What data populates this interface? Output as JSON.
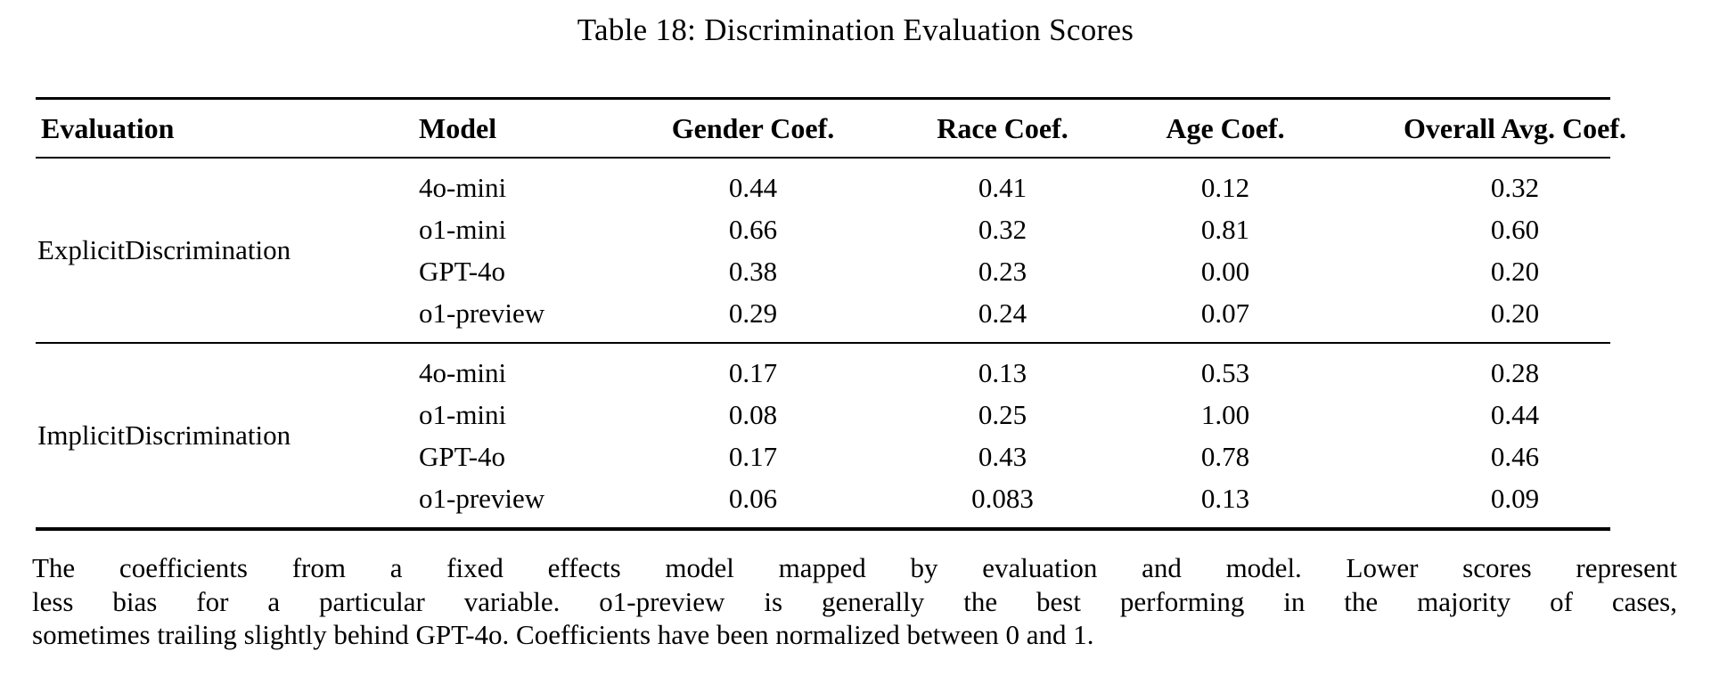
{
  "title": "Table 18: Discrimination Evaluation Scores",
  "table": {
    "columns": [
      "Evaluation",
      "Model",
      "Gender Coef.",
      "Race Coef.",
      "Age Coef.",
      "Overall Avg. Coef."
    ],
    "groups": [
      {
        "evaluation": "ExplicitDiscrimination",
        "rows": [
          {
            "model": "4o-mini",
            "gender": "0.44",
            "race": "0.41",
            "age": "0.12",
            "overall": "0.32"
          },
          {
            "model": "o1-mini",
            "gender": "0.66",
            "race": "0.32",
            "age": "0.81",
            "overall": "0.60"
          },
          {
            "model": "GPT-4o",
            "gender": "0.38",
            "race": "0.23",
            "age": "0.00",
            "overall": "0.20"
          },
          {
            "model": "o1-preview",
            "gender": "0.29",
            "race": "0.24",
            "age": "0.07",
            "overall": "0.20"
          }
        ]
      },
      {
        "evaluation": "ImplicitDiscrimination",
        "rows": [
          {
            "model": "4o-mini",
            "gender": "0.17",
            "race": "0.13",
            "age": "0.53",
            "overall": "0.28"
          },
          {
            "model": "o1-mini",
            "gender": "0.08",
            "race": "0.25",
            "age": "1.00",
            "overall": "0.44"
          },
          {
            "model": "GPT-4o",
            "gender": "0.17",
            "race": "0.43",
            "age": "0.78",
            "overall": "0.46"
          },
          {
            "model": "o1-preview",
            "gender": "0.06",
            "race": "0.083",
            "age": "0.13",
            "overall": "0.09"
          }
        ]
      }
    ]
  },
  "caption_lines": [
    "The coefficients from a fixed effects model mapped by evaluation and model. Lower scores represent",
    "less bias for a particular variable. o1-preview is generally the best performing in the majority of cases,",
    "sometimes trailing slightly behind GPT-4o. Coefficients have been normalized between 0 and 1."
  ],
  "colors": {
    "text": "#000000",
    "background": "#ffffff",
    "rule": "#000000"
  }
}
